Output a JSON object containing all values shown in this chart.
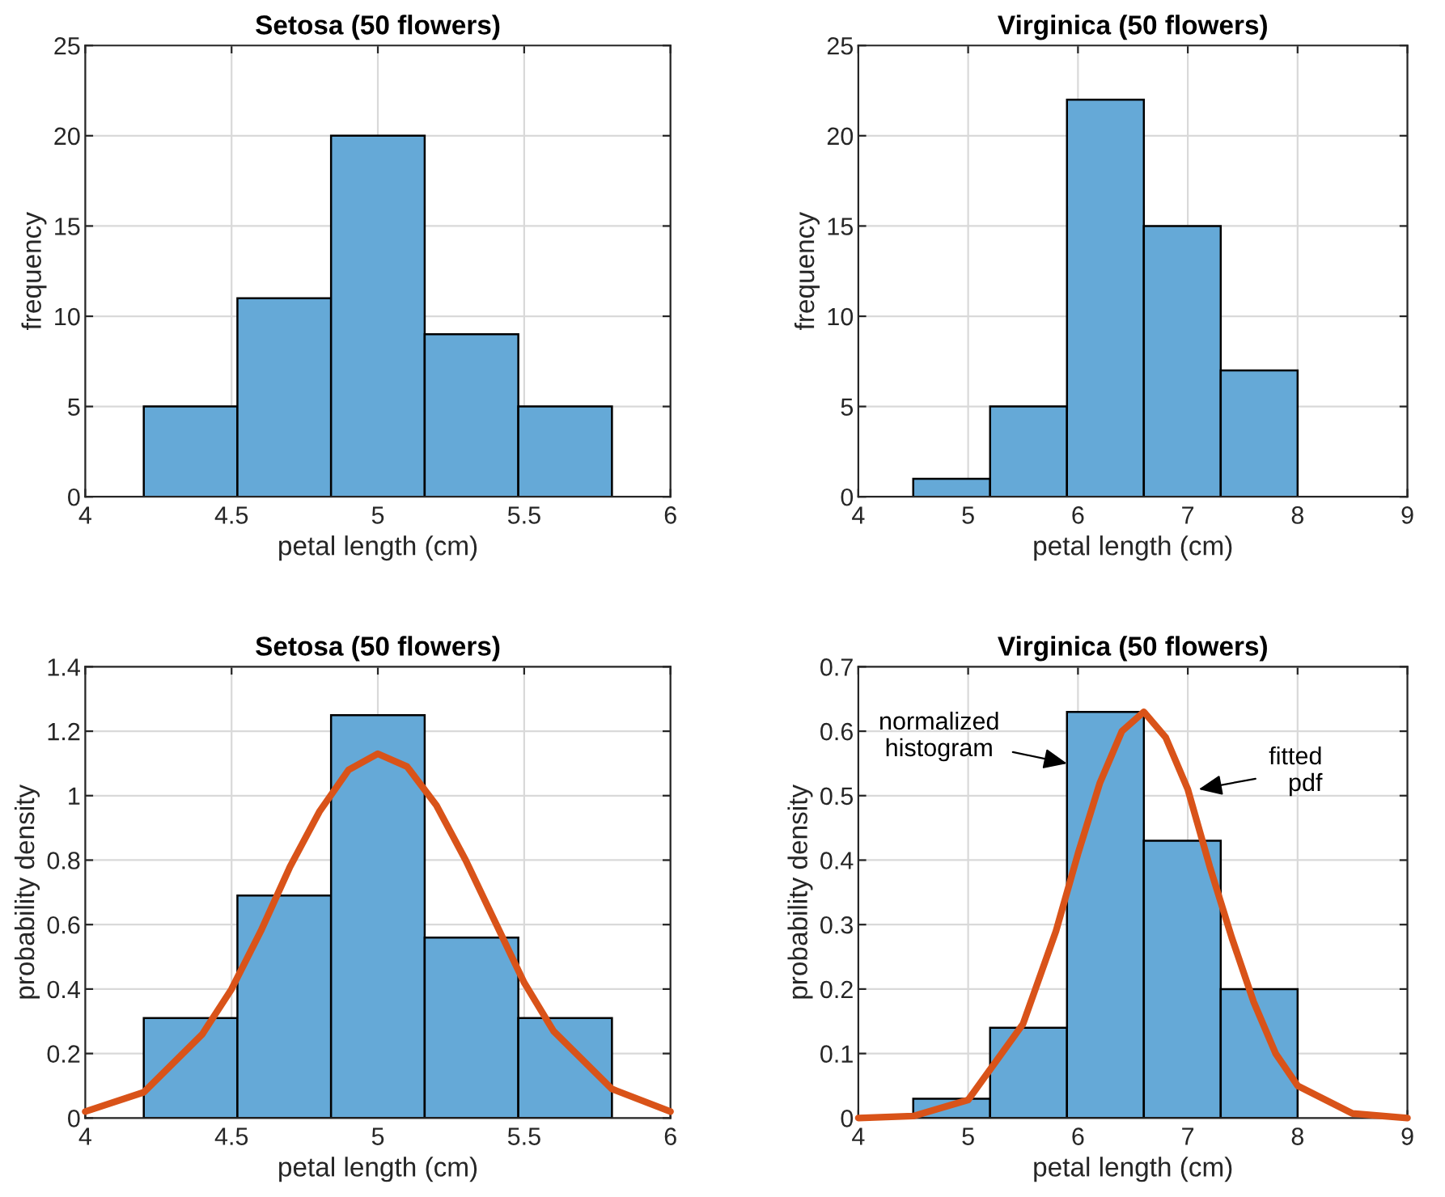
{
  "chart_data": [
    {
      "type": "histogram",
      "title": "Setosa (50 flowers)",
      "xlabel": "petal length (cm)",
      "ylabel": "frequency",
      "xlim": [
        4,
        6
      ],
      "xticks": [
        4,
        4.5,
        5,
        5.5,
        6
      ],
      "ylim": [
        0,
        25
      ],
      "yticks": [
        0,
        5,
        10,
        15,
        20,
        25
      ],
      "grid": true,
      "bins": [
        4.2,
        4.52,
        4.84,
        5.16,
        5.48,
        5.8
      ],
      "values": [
        5,
        11,
        20,
        9,
        5
      ],
      "color": "#65a9d7"
    },
    {
      "type": "histogram",
      "title": "Virginica (50 flowers)",
      "xlabel": "petal length (cm)",
      "ylabel": "frequency",
      "xlim": [
        4,
        9
      ],
      "xticks": [
        4,
        5,
        6,
        7,
        8,
        9
      ],
      "ylim": [
        0,
        25
      ],
      "yticks": [
        0,
        5,
        10,
        15,
        20,
        25
      ],
      "grid": true,
      "bins": [
        4.5,
        5.2,
        5.9,
        6.6,
        7.3,
        8.0
      ],
      "values": [
        1,
        5,
        22,
        15,
        7
      ],
      "color": "#65a9d7"
    },
    {
      "type": "histogram",
      "title": "Setosa (50 flowers)",
      "xlabel": "petal length (cm)",
      "ylabel": "probability density",
      "xlim": [
        4,
        6
      ],
      "xticks": [
        4,
        4.5,
        5,
        5.5,
        6
      ],
      "ylim": [
        0,
        1.4
      ],
      "yticks": [
        0,
        0.2,
        0.4,
        0.6,
        0.8,
        1,
        1.2,
        1.4
      ],
      "grid": true,
      "bins": [
        4.2,
        4.52,
        4.84,
        5.16,
        5.48,
        5.8
      ],
      "values": [
        0.31,
        0.69,
        1.25,
        0.56,
        0.31
      ],
      "color": "#65a9d7",
      "series": [
        {
          "type": "line",
          "color": "#d95319",
          "x": [
            4.0,
            4.2,
            4.4,
            4.5,
            4.6,
            4.7,
            4.8,
            4.9,
            5.0,
            5.1,
            5.2,
            5.3,
            5.4,
            5.5,
            5.6,
            5.8,
            6.0
          ],
          "values": [
            0.02,
            0.08,
            0.26,
            0.4,
            0.58,
            0.78,
            0.95,
            1.08,
            1.13,
            1.09,
            0.97,
            0.8,
            0.61,
            0.42,
            0.27,
            0.09,
            0.02
          ]
        }
      ]
    },
    {
      "type": "histogram",
      "title": "Virginica (50 flowers)",
      "xlabel": "petal length (cm)",
      "ylabel": "probability density",
      "xlim": [
        4,
        9
      ],
      "xticks": [
        4,
        5,
        6,
        7,
        8,
        9
      ],
      "ylim": [
        0,
        0.7
      ],
      "yticks": [
        0,
        0.1,
        0.2,
        0.3,
        0.4,
        0.5,
        0.6,
        0.7
      ],
      "grid": true,
      "annotations": [
        {
          "text": "normalized\nhistogram",
          "x": 5.9,
          "y": 0.55
        },
        {
          "text": "fitted\npdf",
          "x": 7.1,
          "y": 0.51
        }
      ],
      "bins": [
        4.5,
        5.2,
        5.9,
        6.6,
        7.3,
        8.0
      ],
      "values": [
        0.03,
        0.14,
        0.63,
        0.43,
        0.2
      ],
      "color": "#65a9d7",
      "series": [
        {
          "type": "line",
          "color": "#d95319",
          "x": [
            4.0,
            4.5,
            5.0,
            5.5,
            5.8,
            6.0,
            6.2,
            6.4,
            6.6,
            6.8,
            7.0,
            7.2,
            7.4,
            7.6,
            7.8,
            8.0,
            8.5,
            9.0
          ],
          "values": [
            0.0,
            0.003,
            0.028,
            0.146,
            0.29,
            0.41,
            0.52,
            0.6,
            0.63,
            0.59,
            0.51,
            0.39,
            0.28,
            0.18,
            0.1,
            0.05,
            0.007,
            0.0
          ]
        }
      ]
    }
  ]
}
